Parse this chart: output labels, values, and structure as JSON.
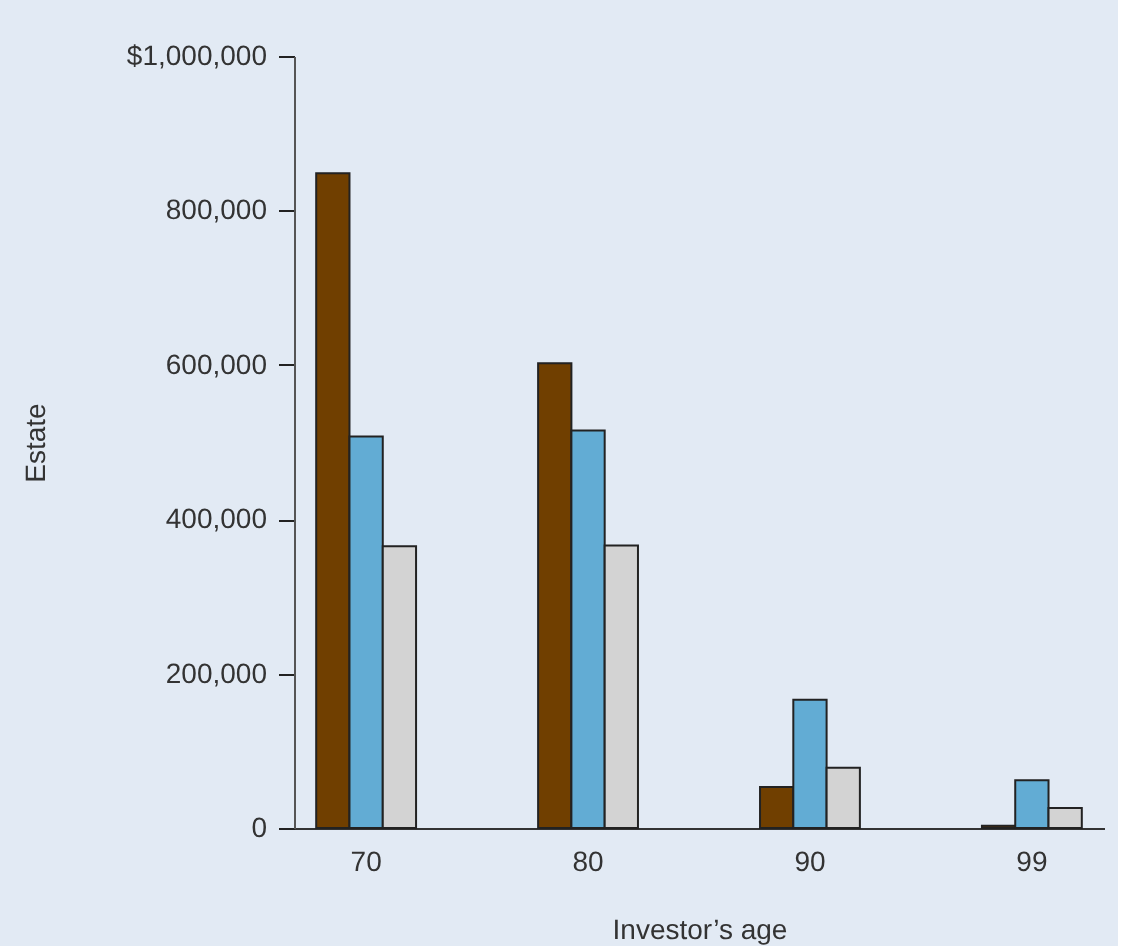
{
  "chart_data": {
    "type": "bar",
    "xlabel": "Investor’s age",
    "ylabel": "Estate",
    "categories": [
      "70",
      "80",
      "90",
      "99"
    ],
    "series": [
      {
        "color": "#703f00",
        "values": [
          848000,
          602000,
          53000,
          3000
        ]
      },
      {
        "color": "#62acd4",
        "values": [
          507000,
          515000,
          166000,
          62000
        ]
      },
      {
        "color": "#d3d3d3",
        "values": [
          365000,
          366000,
          78000,
          26000
        ]
      }
    ],
    "ylim": [
      0,
      1000000
    ],
    "yticks": [
      0,
      {
        "value": 200000,
        "label": "200,000"
      },
      {
        "value": 400000,
        "label": "400,000"
      },
      {
        "value": 600000,
        "label": "600,000"
      },
      {
        "value": 800000,
        "label": "800,000"
      },
      {
        "value": 1000000,
        "label": "$1,000,000"
      }
    ],
    "grid": false,
    "legend": false
  }
}
